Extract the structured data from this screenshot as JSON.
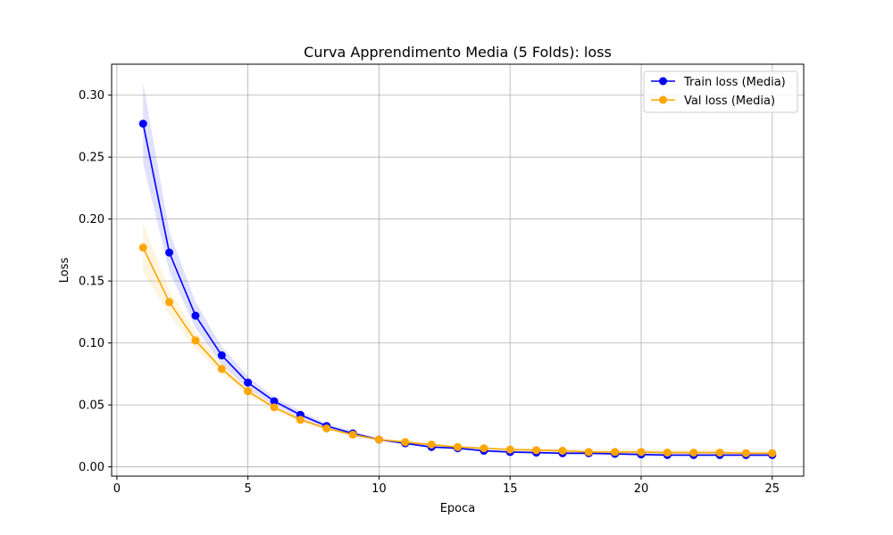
{
  "chart_data": {
    "type": "line",
    "title": "Curva Apprendimento Media (5 Folds): loss",
    "xlabel": "Epoca",
    "ylabel": "Loss",
    "xlim": [
      -0.2,
      26.2
    ],
    "ylim": [
      -0.0075,
      0.325
    ],
    "xticks": [
      0,
      5,
      10,
      15,
      20,
      25
    ],
    "yticks": [
      0.0,
      0.05,
      0.1,
      0.15,
      0.2,
      0.25,
      0.3
    ],
    "xtick_labels": [
      "0",
      "5",
      "10",
      "15",
      "20",
      "25"
    ],
    "ytick_labels": [
      "0.00",
      "0.05",
      "0.10",
      "0.15",
      "0.20",
      "0.25",
      "0.30"
    ],
    "grid": true,
    "legend_position": "top-right",
    "x": [
      1,
      2,
      3,
      4,
      5,
      6,
      7,
      8,
      9,
      10,
      11,
      12,
      13,
      14,
      15,
      16,
      17,
      18,
      19,
      20,
      21,
      22,
      23,
      24,
      25
    ],
    "series": [
      {
        "name": "Train loss (Media)",
        "color": "#0000ff",
        "marker": "circle",
        "values": [
          0.277,
          0.173,
          0.122,
          0.09,
          0.068,
          0.053,
          0.042,
          0.033,
          0.027,
          0.022,
          0.019,
          0.016,
          0.015,
          0.013,
          0.012,
          0.0115,
          0.011,
          0.011,
          0.0105,
          0.01,
          0.0095,
          0.0095,
          0.0095,
          0.0095,
          0.0095
        ],
        "band_lower": [
          0.245,
          0.158,
          0.112,
          0.083,
          0.063,
          0.05,
          0.039,
          0.031,
          0.025,
          0.021,
          0.018,
          0.015,
          0.014,
          0.012,
          0.011,
          0.0105,
          0.01,
          0.0095,
          0.009,
          0.0085,
          0.008,
          0.008,
          0.008,
          0.008,
          0.008
        ],
        "band_upper": [
          0.31,
          0.19,
          0.133,
          0.097,
          0.073,
          0.056,
          0.045,
          0.035,
          0.029,
          0.023,
          0.02,
          0.017,
          0.016,
          0.014,
          0.013,
          0.0125,
          0.012,
          0.012,
          0.012,
          0.0115,
          0.011,
          0.011,
          0.011,
          0.011,
          0.011
        ]
      },
      {
        "name": "Val loss (Media)",
        "color": "#ffa500",
        "marker": "circle",
        "values": [
          0.177,
          0.133,
          0.102,
          0.079,
          0.061,
          0.048,
          0.038,
          0.031,
          0.026,
          0.022,
          0.02,
          0.018,
          0.016,
          0.015,
          0.014,
          0.0135,
          0.013,
          0.012,
          0.012,
          0.012,
          0.0115,
          0.0115,
          0.0115,
          0.011,
          0.011
        ],
        "band_lower": [
          0.157,
          0.123,
          0.095,
          0.075,
          0.058,
          0.046,
          0.036,
          0.03,
          0.025,
          0.021,
          0.019,
          0.017,
          0.015,
          0.014,
          0.013,
          0.012,
          0.011,
          0.01,
          0.0095,
          0.0095,
          0.009,
          0.009,
          0.009,
          0.0085,
          0.0085
        ],
        "band_upper": [
          0.197,
          0.143,
          0.109,
          0.084,
          0.064,
          0.05,
          0.04,
          0.032,
          0.027,
          0.023,
          0.021,
          0.019,
          0.017,
          0.016,
          0.015,
          0.015,
          0.015,
          0.0145,
          0.0145,
          0.0145,
          0.014,
          0.014,
          0.014,
          0.0135,
          0.0135
        ]
      }
    ]
  }
}
